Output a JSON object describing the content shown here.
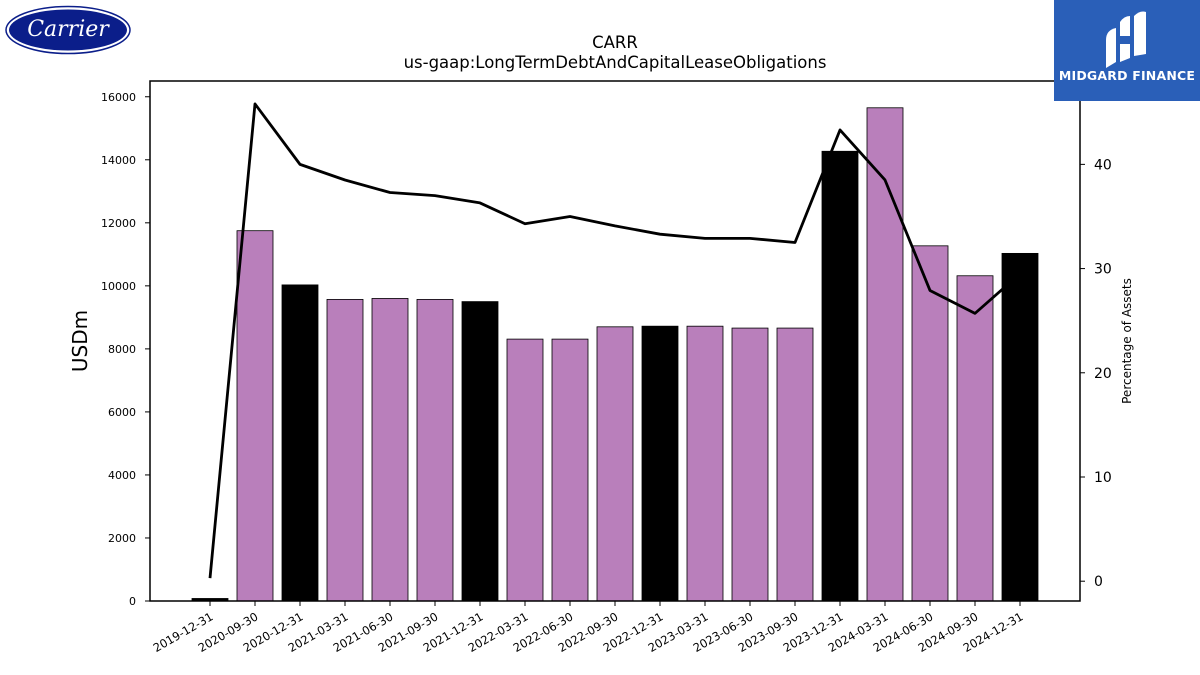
{
  "header": {
    "company_logo_text": "Carrier",
    "brand_logo_text": "MIDGARD FINANCE"
  },
  "chart_data": {
    "type": "bar",
    "title": "CARR",
    "subtitle": "us-gaap:LongTermDebtAndCapitalLeaseObligations",
    "ylabel": "USDm",
    "y2label": "Percentage of Assets",
    "ylim": [
      0,
      16500
    ],
    "y2lim": [
      -1.9,
      48
    ],
    "yticks": [
      0,
      2000,
      4000,
      6000,
      8000,
      10000,
      12000,
      14000,
      16000
    ],
    "y2ticks": [
      0,
      10,
      20,
      30,
      40
    ],
    "grid": false,
    "legend": "none",
    "colors": {
      "annual": "#000000",
      "quarterly": "#b97fbb",
      "line": "#000000"
    },
    "categories": [
      "2019-12-31",
      "2020-09-30",
      "2020-12-31",
      "2021-03-31",
      "2021-06-30",
      "2021-09-30",
      "2021-12-31",
      "2022-03-31",
      "2022-06-30",
      "2022-09-30",
      "2022-12-31",
      "2023-03-31",
      "2023-06-30",
      "2023-09-30",
      "2023-12-31",
      "2024-03-31",
      "2024-06-30",
      "2024-09-30",
      "2024-12-31"
    ],
    "series": [
      {
        "type": "bar",
        "axis": "left",
        "values": [
          80,
          11750,
          10030,
          9570,
          9600,
          9570,
          9500,
          8310,
          8310,
          8700,
          8720,
          8720,
          8660,
          8660,
          14270,
          15650,
          11270,
          10320,
          11030
        ],
        "year_end": [
          true,
          false,
          true,
          false,
          false,
          false,
          true,
          false,
          false,
          false,
          true,
          false,
          false,
          false,
          true,
          false,
          false,
          false,
          true
        ]
      },
      {
        "type": "line",
        "axis": "right",
        "values": [
          0.3,
          45.8,
          40.0,
          38.5,
          37.3,
          37.0,
          36.3,
          34.3,
          35.0,
          34.1,
          33.3,
          32.9,
          32.9,
          32.5,
          43.3,
          38.5,
          27.9,
          25.7,
          29.5
        ]
      }
    ]
  }
}
